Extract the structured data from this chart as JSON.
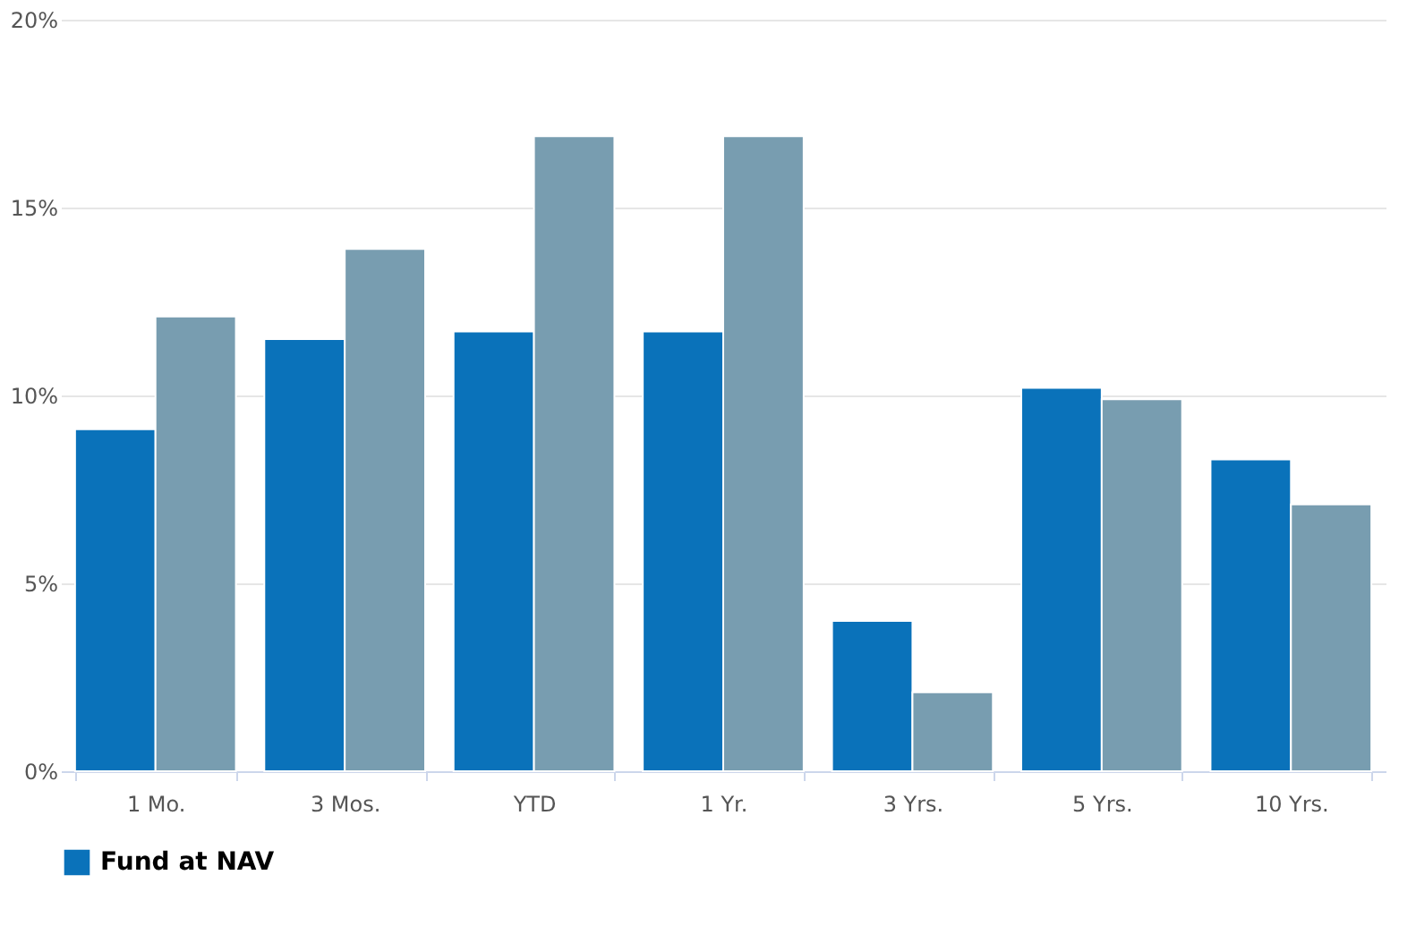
{
  "chart_data": {
    "type": "bar",
    "categories": [
      "1 Mo.",
      "3 Mos.",
      "YTD",
      "1 Yr.",
      "3 Yrs.",
      "5 Yrs.",
      "10 Yrs."
    ],
    "series": [
      {
        "name": "Fund at NAV",
        "color": "#0a72ba",
        "values": [
          9.1,
          11.5,
          11.7,
          11.7,
          4.0,
          10.2,
          8.3
        ]
      },
      {
        "color": "#789db0",
        "values": [
          12.1,
          13.9,
          16.9,
          16.9,
          2.1,
          9.9,
          7.1
        ]
      }
    ],
    "ylim": [
      0,
      20
    ],
    "yticks": [
      {
        "value": 0,
        "label": "0%"
      },
      {
        "value": 5,
        "label": "5%"
      },
      {
        "value": 10,
        "label": "10%"
      },
      {
        "value": 15,
        "label": "15%"
      },
      {
        "value": 20,
        "label": "20%"
      }
    ],
    "grid": "y",
    "legend": "bottom"
  }
}
